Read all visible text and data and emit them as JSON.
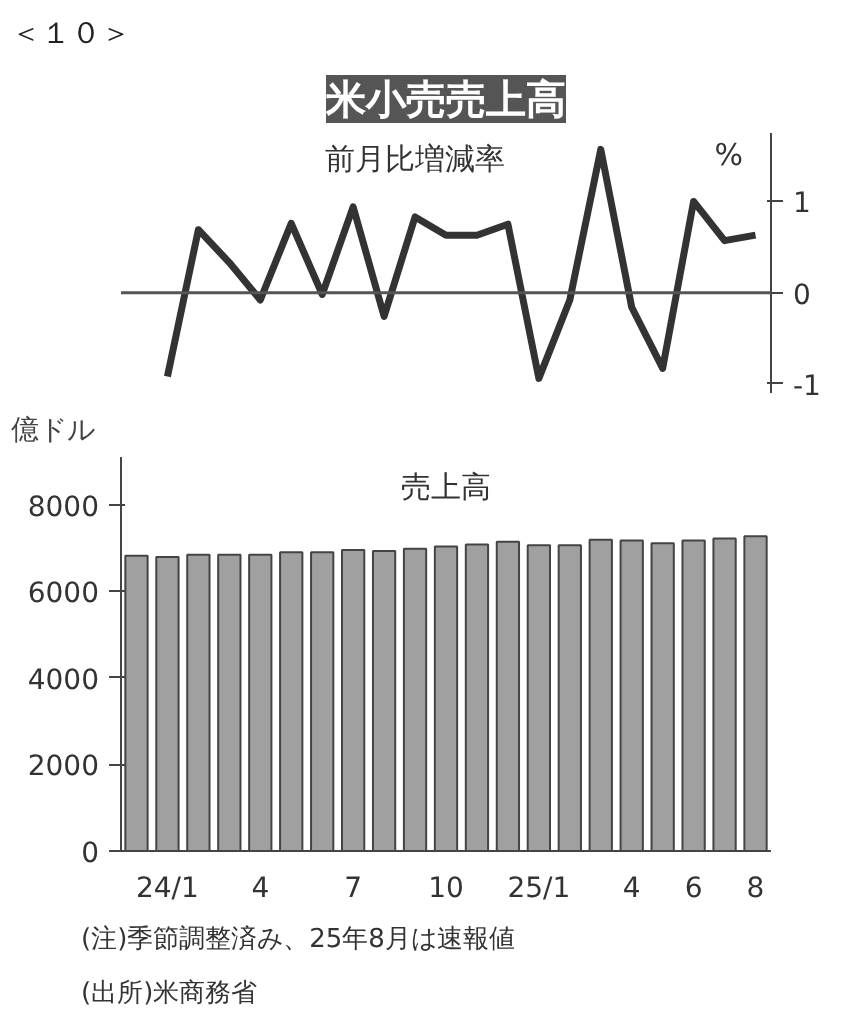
{
  "chart_data": [
    {
      "type": "line",
      "title": "米小売売上高",
      "subtitle": "前月比増減率",
      "ylabel": "%",
      "annotations": [
        "＜１０＞"
      ],
      "categories": [
        null,
        null,
        null,
        null,
        null,
        null,
        null,
        null,
        null,
        null,
        null,
        null,
        null,
        null,
        null,
        null,
        null,
        null,
        null,
        null,
        null
      ],
      "series": [
        {
          "color": "#333333",
          "values": [
            null,
            -0.92,
            0.69,
            0.33,
            -0.08,
            0.76,
            -0.02,
            0.94,
            -0.26,
            0.83,
            0.63,
            0.63,
            0.75,
            -0.94,
            -0.08,
            1.57,
            -0.16,
            -0.83,
            1.0,
            0.57,
            0.63
          ]
        }
      ],
      "ylim": [
        -1.1,
        1.75
      ],
      "yticks": [
        -1,
        0,
        1
      ],
      "grid": false,
      "marker": "none",
      "line_style": "solid",
      "ref_lines": [
        {
          "axis": "y",
          "value": 0,
          "color": "#555555"
        }
      ]
    },
    {
      "type": "bar",
      "title": "売上高",
      "ylabel": "億ドル",
      "annotations": [
        "(注)季節調整済み、25年8月は速報値",
        "(出所)米商務省"
      ],
      "categories": [
        null,
        "24/1",
        null,
        null,
        "4",
        null,
        null,
        "7",
        null,
        null,
        "10",
        null,
        null,
        "25/1",
        null,
        null,
        "4",
        null,
        "6",
        null,
        "8"
      ],
      "series": [
        {
          "color": "#a0a0a0",
          "values": [
            6820,
            6790,
            6840,
            6840,
            6840,
            6900,
            6900,
            6950,
            6930,
            6980,
            7030,
            7080,
            7140,
            7060,
            7060,
            7190,
            7170,
            7110,
            7170,
            7220,
            7270
          ]
        }
      ],
      "ylim": [
        0,
        9100
      ],
      "yticks": [
        0,
        2000,
        4000,
        6000,
        8000
      ],
      "grid": false
    }
  ]
}
